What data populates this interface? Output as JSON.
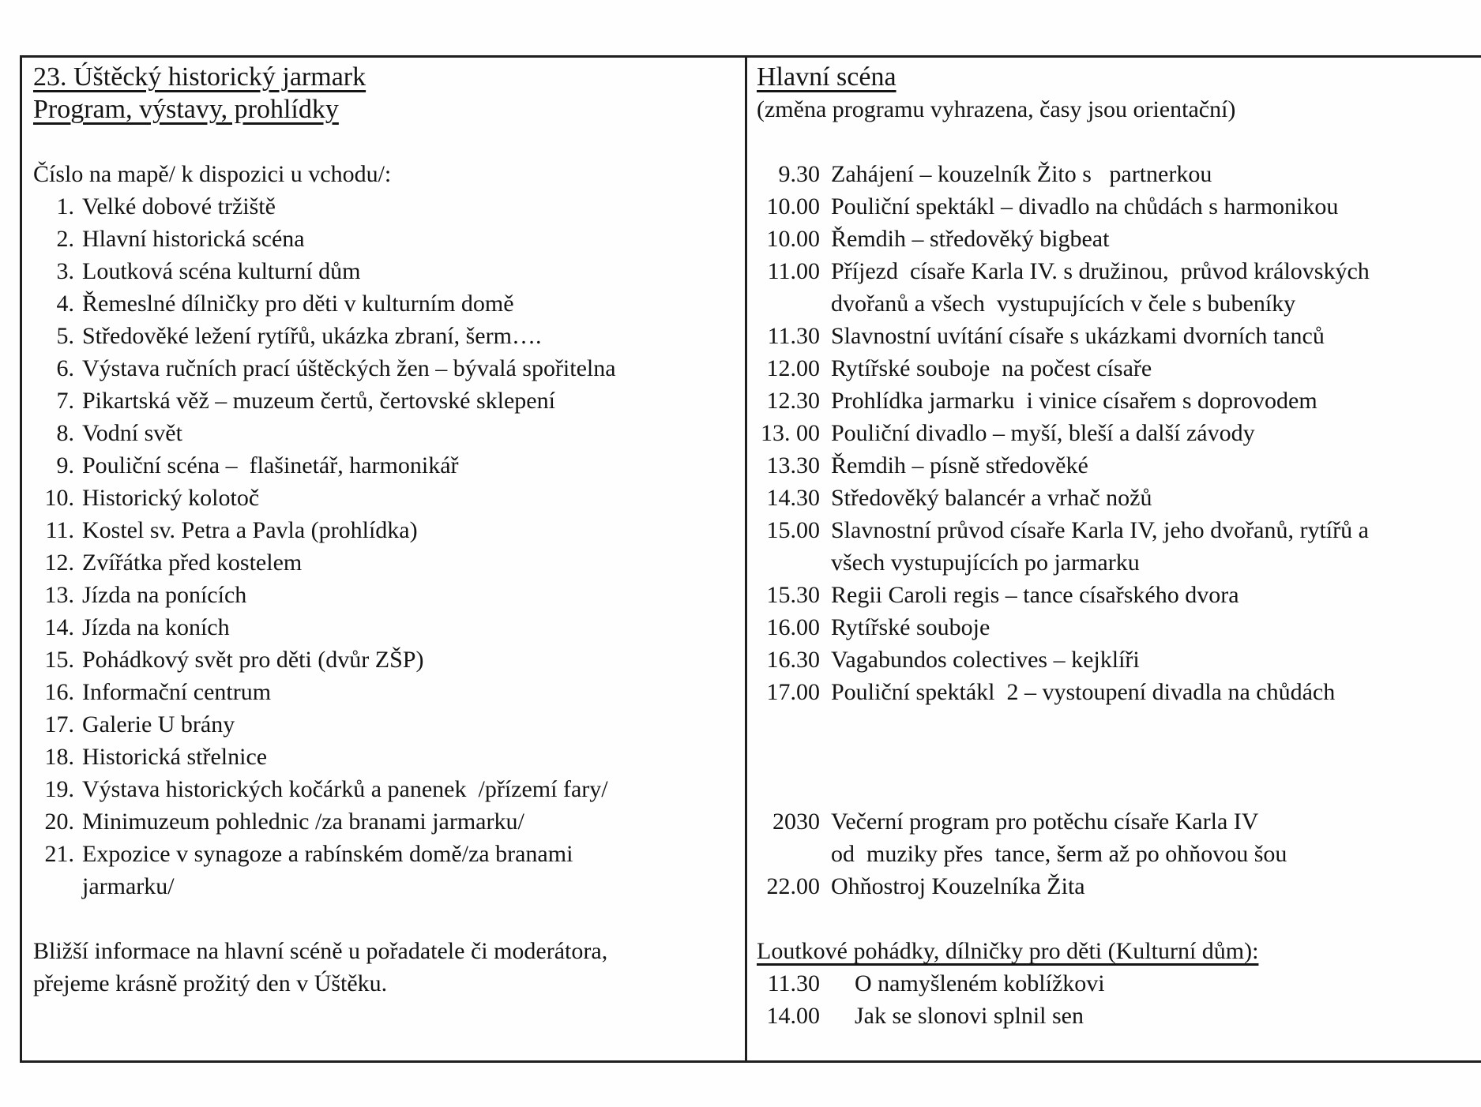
{
  "colors": {
    "ink": "#141414",
    "paper": "#fefefe",
    "border": "#1e1e1e"
  },
  "left": {
    "title_line1": "23. Úštěcký historický jarmark",
    "title_line2": "Program, výstavy, prohlídky",
    "map_heading": "Číslo na mapě/ k dispozici u vchodu/:",
    "items": [
      {
        "num": "1.",
        "text": "Velké dobové tržiště"
      },
      {
        "num": "2.",
        "text": "Hlavní historická scéna"
      },
      {
        "num": "3.",
        "text": "Loutková scéna kulturní dům"
      },
      {
        "num": "4.",
        "text": "Řemeslné dílničky pro děti v kulturním domě"
      },
      {
        "num": "5.",
        "text": "Středověké ležení rytířů, ukázka zbraní, šerm…."
      },
      {
        "num": "6.",
        "text": "Výstava ručních prací úštěckých žen – bývalá spořitelna"
      },
      {
        "num": "7.",
        "text": "Pikartská věž – muzeum čertů, čertovské sklepení"
      },
      {
        "num": "8.",
        "text": "Vodní svět"
      },
      {
        "num": "9.",
        "text": "Pouliční scéna –  flašinetář, harmonikář"
      },
      {
        "num": "10.",
        "text": "Historický kolotoč"
      },
      {
        "num": "11.",
        "text": "Kostel sv. Petra a Pavla (prohlídka)"
      },
      {
        "num": "12.",
        "text": "Zvířátka před kostelem"
      },
      {
        "num": "13.",
        "text": "Jízda na ponících"
      },
      {
        "num": "14.",
        "text": "Jízda na koních"
      },
      {
        "num": "15.",
        "text": "Pohádkový svět pro děti (dvůr ZŠP)"
      },
      {
        "num": "16.",
        "text": "Informační centrum"
      },
      {
        "num": "17.",
        "text": "Galerie U brány"
      },
      {
        "num": "18.",
        "text": "Historická střelnice"
      },
      {
        "num": "19.",
        "text": "Výstava historických kočárků a panenek  /přízemí fary/"
      },
      {
        "num": "20.",
        "text": "Minimuzeum pohlednic /za branami jarmarku/"
      },
      {
        "num": "21.",
        "text": "Expozice v synagoze a rabínském domě/za branami\njarmarku/"
      }
    ],
    "footer": "Bližší informace na hlavní scéně u pořadatele či moderátora,\npřejeme krásně prožitý den v Úštěku."
  },
  "right": {
    "heading": "Hlavní scéna",
    "subheading": "(změna programu vyhrazena, časy jsou orientační)",
    "schedule": [
      {
        "time": "9.30",
        "desc": "Zahájení – kouzelník Žito s   partnerkou"
      },
      {
        "time": "10.00",
        "desc": "Pouliční spektákl – divadlo na chůdách s harmonikou"
      },
      {
        "time": "10.00",
        "desc": "Řemdih – středověký bigbeat"
      },
      {
        "time": "11.00",
        "desc": "Příjezd  císaře Karla IV. s družinou,  průvod královských\ndvořanů a všech  vystupujících v čele s bubeníky"
      },
      {
        "time": "11.30",
        "desc": "Slavnostní uvítání císaře s ukázkami dvorních tanců"
      },
      {
        "time": "12.00",
        "desc": "Rytířské souboje  na počest císaře"
      },
      {
        "time": "12.30",
        "desc": "Prohlídka jarmarku  i vinice císařem s doprovodem"
      },
      {
        "time": "13. 00",
        "desc": "Pouliční divadlo – myší, bleší a další závody"
      },
      {
        "time": "13.30",
        "desc": "Řemdih – písně středověké"
      },
      {
        "time": "14.30",
        "desc": "Středověký balancér a vrhač nožů"
      },
      {
        "time": "15.00",
        "desc": "Slavnostní průvod císaře Karla IV, jeho dvořanů, rytířů a\nvšech vystupujících po jarmarku"
      },
      {
        "time": "15.30",
        "desc": "Regii Caroli regis – tance císařského dvora"
      },
      {
        "time": "16.00",
        "desc": "Rytířské souboje"
      },
      {
        "time": "16.30",
        "desc": "Vagabundos colectives – kejklíři"
      },
      {
        "time": "17.00",
        "desc": "Pouliční spektákl  2 – vystoupení divadla na chůdách"
      }
    ],
    "evening": [
      {
        "time": "2030",
        "desc": "Večerní program pro potěchu císaře Karla IV\nod  muziky přes  tance, šerm až po ohňovou šou"
      },
      {
        "time": "22.00",
        "desc": "Ohňostroj Kouzelníka Žita"
      }
    ],
    "kids_heading": "Loutkové pohádky, dílničky pro děti (Kulturní dům):",
    "kids": [
      {
        "time": "11.30",
        "desc": "O namyšleném koblížkovi"
      },
      {
        "time": "14.00",
        "desc": "Jak se slonovi splnil sen"
      }
    ]
  }
}
